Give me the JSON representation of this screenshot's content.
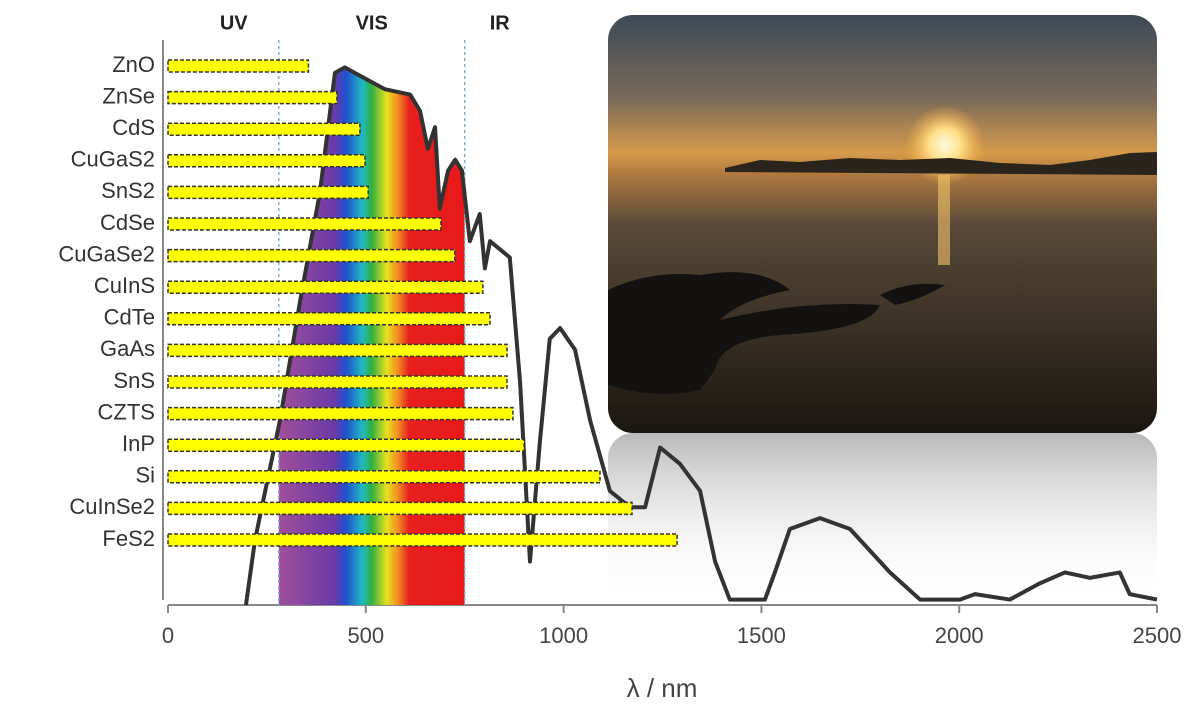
{
  "chart_data": {
    "type": "bar-spectrum",
    "categories": [
      "ZnO",
      "ZnSe",
      "CdS",
      "CuGaS2",
      "SnS2",
      "CdSe",
      "CuGaSe2",
      "CuInS",
      "CdTe",
      "GaAs",
      "SnS",
      "CZTS",
      "InP",
      "Si",
      "CuInSe2",
      "FeS2"
    ],
    "values": [
      355,
      427,
      485,
      498,
      506,
      690,
      725,
      796,
      814,
      857,
      857,
      872,
      900,
      1092,
      1173,
      1287
    ],
    "color": "#ffff00",
    "x_label": "λ / nm",
    "xlim": [
      0,
      2500
    ],
    "xticks": [
      0,
      500,
      1000,
      1500,
      2000,
      2500
    ],
    "regions": [
      "UV",
      "VIS",
      "IR"
    ],
    "region_bounds": [
      280,
      750
    ],
    "spectrum": {
      "color": "#333333",
      "ylim": [
        0,
        100
      ],
      "x": [
        197,
        220,
        283,
        334,
        384,
        422,
        447,
        472,
        548,
        612,
        637,
        657,
        675,
        687,
        708,
        726,
        743,
        763,
        788,
        801,
        814,
        864,
        890,
        915,
        940,
        965,
        991,
        1029,
        1067,
        1117,
        1168,
        1206,
        1244,
        1294,
        1345,
        1383,
        1420,
        1509,
        1534,
        1572,
        1648,
        1724,
        1825,
        1901,
        2002,
        2040,
        2128,
        2204,
        2267,
        2330,
        2406,
        2431,
        2500
      ],
      "values": [
        0,
        12,
        34,
        56,
        76,
        98,
        99,
        98,
        95,
        94,
        91,
        84,
        88,
        73,
        80,
        82,
        80,
        67,
        72,
        62,
        67,
        64,
        41,
        8,
        30,
        49,
        51,
        47,
        34,
        21,
        18,
        18,
        29,
        26,
        21,
        8,
        1,
        1,
        6,
        14,
        16,
        14,
        6,
        1,
        1,
        2,
        1,
        4,
        6,
        5,
        6,
        2,
        1
      ]
    }
  }
}
